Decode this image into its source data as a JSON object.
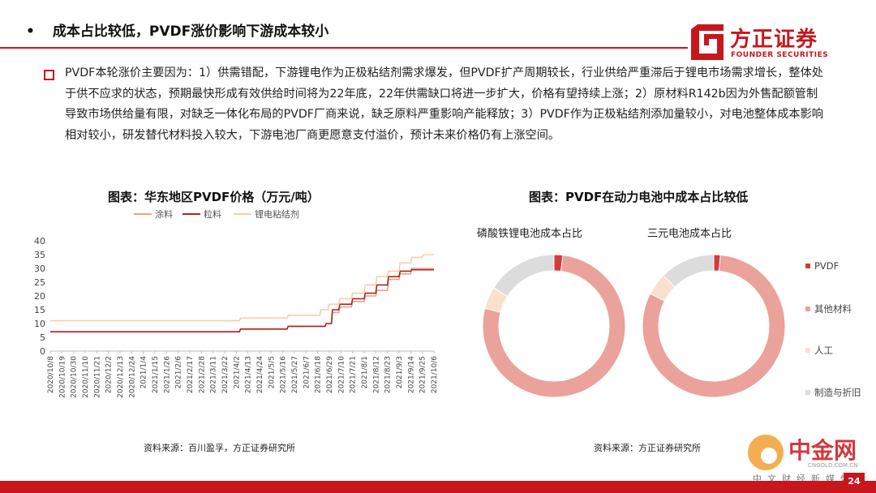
{
  "header": {
    "bullet": "•",
    "title": "成本占比较低，PVDF涨价影响下游成本较小"
  },
  "logo": {
    "cn": "方正证券",
    "en": "FOUNDER SECURITIES"
  },
  "body_text": "PVDF本轮涨价主要因为：1）供需错配，下游锂电作为正极粘结剂需求爆发，但PVDF扩产周期较长，行业供给严重滞后于锂电市场需求增长，整体处于供不应求的状态，预期最快形成有效供给时间将为22年底，22年供需缺口将进一步扩大，价格有望持续上涨；2）原材料R142b因为外售配额管制导致市场供给量有限，对缺乏一体化布局的PVDF厂商来说，缺乏原料严重影响产能释放；3）PVDF作为正极粘结剂添加量较小，对电池整体成本影响相对较小，研发替代材料投入较大，下游电池厂商更愿意支付溢价，预计未来价格仍有上涨空间。",
  "left_panel": {
    "title": "图表：华东地区PVDF价格（万元/吨）",
    "source": "资料来源：百川盈孚，方正证券研究所"
  },
  "right_panel": {
    "title": "图表：PVDF在动力电池中成本占比较低",
    "source": "资料来源：方正证券研究所"
  },
  "footer": {
    "page": "24"
  },
  "watermark": {
    "cn": "中金网",
    "domain": "CNGOLD.COM.CN",
    "sub": "中文财经新媒体"
  },
  "chart_data": [
    {
      "type": "line",
      "title": "图表：华东地区PVDF价格（万元/吨）",
      "ylim": [
        0,
        40
      ],
      "yticks": [
        0,
        5,
        10,
        15,
        20,
        25,
        30,
        35,
        40
      ],
      "x_tick_labels": [
        "2020/10/8",
        "2020/10/19",
        "2020/10/30",
        "2020/11/10",
        "2020/11/21",
        "2020/12/2",
        "2020/12/13",
        "2020/12/24",
        "2021/1/4",
        "2021/1/15",
        "2021/1/26",
        "2021/2/6",
        "2021/2/17",
        "2021/2/28",
        "2021/3/11",
        "2021/3/22",
        "2021/4/2",
        "2021/4/13",
        "2021/4/24",
        "2021/5/5",
        "2021/5/16",
        "2021/5/27",
        "2021/6/7",
        "2021/6/18",
        "2021/6/29",
        "2021/7/10",
        "2021/7/21",
        "2021/8/1",
        "2021/8/12",
        "2021/8/23",
        "2021/9/3",
        "2021/9/14",
        "2021/9/25",
        "2021/10/6"
      ],
      "x_start": "2020/10/8",
      "x_end": "2021/10/6",
      "series": [
        {
          "name": "涂料",
          "color": "#e8a48a",
          "points": [
            [
              "2020/10/8",
              7
            ],
            [
              "2021/4/5",
              7
            ],
            [
              "2021/4/6",
              8
            ],
            [
              "2021/5/20",
              8
            ],
            [
              "2021/5/21",
              9
            ],
            [
              "2021/6/25",
              9
            ],
            [
              "2021/6/26",
              10
            ],
            [
              "2021/7/1",
              10
            ],
            [
              "2021/7/2",
              14
            ],
            [
              "2021/7/8",
              14
            ],
            [
              "2021/7/9",
              16
            ],
            [
              "2021/7/20",
              16
            ],
            [
              "2021/7/21",
              18
            ],
            [
              "2021/8/1",
              18
            ],
            [
              "2021/8/2",
              20
            ],
            [
              "2021/8/12",
              20
            ],
            [
              "2021/8/13",
              22
            ],
            [
              "2021/8/23",
              22
            ],
            [
              "2021/8/24",
              26
            ],
            [
              "2021/9/3",
              26
            ],
            [
              "2021/9/4",
              28
            ],
            [
              "2021/9/14",
              28
            ],
            [
              "2021/9/15",
              30
            ],
            [
              "2021/10/6",
              30
            ]
          ]
        },
        {
          "name": "粒料",
          "color": "#b22222",
          "points": [
            [
              "2020/10/8",
              7
            ],
            [
              "2021/4/5",
              7
            ],
            [
              "2021/4/6",
              8
            ],
            [
              "2021/5/20",
              8
            ],
            [
              "2021/5/21",
              9
            ],
            [
              "2021/6/25",
              9
            ],
            [
              "2021/6/26",
              10
            ],
            [
              "2021/7/1",
              10
            ],
            [
              "2021/7/2",
              15
            ],
            [
              "2021/7/8",
              15
            ],
            [
              "2021/7/9",
              17
            ],
            [
              "2021/7/20",
              17
            ],
            [
              "2021/7/21",
              19
            ],
            [
              "2021/8/1",
              19
            ],
            [
              "2021/8/2",
              21
            ],
            [
              "2021/8/12",
              21
            ],
            [
              "2021/8/13",
              24
            ],
            [
              "2021/8/23",
              24
            ],
            [
              "2021/8/24",
              27
            ],
            [
              "2021/9/3",
              27
            ],
            [
              "2021/9/4",
              29
            ],
            [
              "2021/9/14",
              29
            ],
            [
              "2021/9/15",
              29.5
            ],
            [
              "2021/10/6",
              29.5
            ]
          ]
        },
        {
          "name": "锂电粘结剂",
          "color": "#f5cfa8",
          "points": [
            [
              "2020/10/8",
              11
            ],
            [
              "2021/4/5",
              11
            ],
            [
              "2021/4/6",
              12
            ],
            [
              "2021/5/20",
              12
            ],
            [
              "2021/5/21",
              13
            ],
            [
              "2021/6/20",
              13
            ],
            [
              "2021/6/21",
              15
            ],
            [
              "2021/6/28",
              15
            ],
            [
              "2021/6/29",
              17
            ],
            [
              "2021/7/8",
              17
            ],
            [
              "2021/7/9",
              19
            ],
            [
              "2021/7/20",
              19
            ],
            [
              "2021/7/21",
              21
            ],
            [
              "2021/8/1",
              21
            ],
            [
              "2021/8/2",
              24
            ],
            [
              "2021/8/12",
              24
            ],
            [
              "2021/8/13",
              27
            ],
            [
              "2021/8/23",
              27
            ],
            [
              "2021/8/24",
              29
            ],
            [
              "2021/9/3",
              29
            ],
            [
              "2021/9/4",
              32
            ],
            [
              "2021/9/14",
              32
            ],
            [
              "2021/9/15",
              34
            ],
            [
              "2021/9/25",
              34
            ],
            [
              "2021/9/26",
              35
            ],
            [
              "2021/10/6",
              35
            ]
          ]
        }
      ]
    },
    {
      "type": "pie",
      "subtitle": "磷酸铁锂电池成本占比",
      "labels": [
        "PVDF",
        "其他材料",
        "人工",
        "制造与折旧"
      ],
      "colors": [
        "#d33c3c",
        "#eaa29b",
        "#fbe0cc",
        "#dcdcdc"
      ],
      "values": [
        2,
        77,
        5,
        16
      ]
    },
    {
      "type": "pie",
      "subtitle": "三元电池成本占比",
      "labels": [
        "PVDF",
        "其他材料",
        "人工",
        "制造与折旧"
      ],
      "colors": [
        "#d33c3c",
        "#eaa29b",
        "#fbe0cc",
        "#dcdcdc"
      ],
      "values": [
        1.5,
        81,
        5,
        12.5
      ]
    }
  ]
}
